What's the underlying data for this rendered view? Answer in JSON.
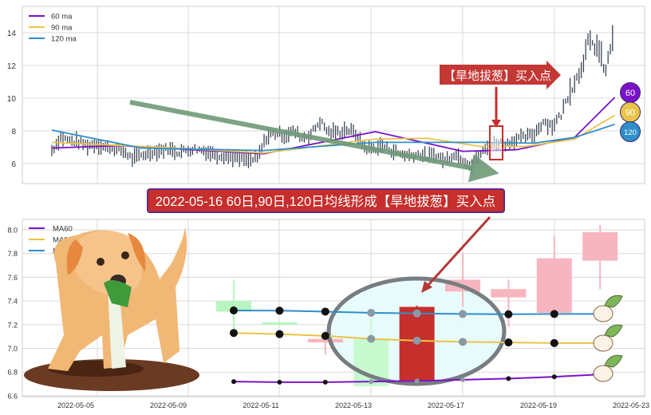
{
  "chart_data": [
    {
      "type": "line",
      "subtype": "candlestick",
      "ylim": [
        4.8,
        15.3
      ],
      "yticks": [
        "6",
        "8",
        "10",
        "12",
        "14"
      ],
      "yticks_values": [
        6,
        8,
        10,
        12,
        14
      ],
      "grid": true,
      "legend_position": "top-left",
      "closes": [
        6.8,
        7.6,
        7.4,
        7.3,
        7.1,
        7.2,
        7.0,
        6.9,
        6.8,
        6.3,
        6.5,
        6.7,
        6.8,
        6.9,
        6.7,
        6.8,
        6.9,
        6.8,
        6.6,
        6.5,
        6.4,
        6.3,
        6.2,
        6.3,
        7.6,
        7.9,
        7.7,
        8.0,
        7.6,
        7.8,
        8.6,
        7.9,
        7.9,
        8.1,
        7.8,
        7.0,
        6.9,
        7.1,
        6.8,
        6.6,
        6.5,
        6.6,
        6.4,
        6.5,
        6.2,
        6.6,
        6.3,
        5.9,
        6.6,
        7.1,
        7.3,
        7.2,
        7.5,
        7.6,
        7.8,
        8.6,
        8.3,
        9.0,
        10.5,
        11.5,
        13.3,
        13.2,
        11.6,
        14.5
      ],
      "series": [
        {
          "name": "60 ma",
          "color": "#7B12C8",
          "points": [
            [
              0,
              6.95
            ],
            [
              7.6,
              7.1
            ],
            [
              23.7,
              6.6
            ],
            [
              36.2,
              7.95
            ],
            [
              46,
              6.75
            ],
            [
              52,
              6.85
            ],
            [
              58.5,
              7.6
            ],
            [
              63,
              10.05
            ]
          ]
        },
        {
          "name": "90 ma",
          "color": "#E8C44A",
          "points": [
            [
              0,
              7.3
            ],
            [
              12,
              7.0
            ],
            [
              23.7,
              6.65
            ],
            [
              36.2,
              7.5
            ],
            [
              42,
              7.55
            ],
            [
              48,
              7.05
            ],
            [
              53,
              7.05
            ],
            [
              58.5,
              7.5
            ],
            [
              63,
              8.95
            ]
          ]
        },
        {
          "name": "120 ma",
          "color": "#2E8FC9",
          "points": [
            [
              0,
              8.05
            ],
            [
              10,
              6.95
            ],
            [
              23.7,
              6.8
            ],
            [
              36.2,
              7.3
            ],
            [
              48,
              7.3
            ],
            [
              54,
              7.25
            ],
            [
              58.5,
              7.6
            ],
            [
              63,
              8.4
            ]
          ]
        }
      ],
      "badges": [
        "60",
        "90",
        "120"
      ],
      "annotation": "【旱地拔葱】买入点"
    },
    {
      "type": "line",
      "subtype": "candlestick",
      "title": "2022-05-16 60日,90日,120日均线形成【旱地拔葱】买入点",
      "ylim": [
        6.6,
        8.1
      ],
      "yticks": [
        "6.6",
        "6.8",
        "7.0",
        "7.2",
        "7.4",
        "7.6",
        "7.8",
        "8.0"
      ],
      "yticks_values": [
        6.6,
        6.8,
        7.0,
        7.2,
        7.4,
        7.6,
        7.8,
        8.0
      ],
      "xticks": [
        "2022-05-05",
        "2022-05-09",
        "2022-05-11",
        "2022-05-13",
        "2022-05-17",
        "2022-05-19",
        "2022-05-23"
      ],
      "grid": true,
      "legend_position": "top-left",
      "candles": [
        {
          "open": 7.31,
          "close": 7.4,
          "high": 7.58,
          "low": 7.1,
          "color": "#b8f5c0"
        },
        {
          "open": 7.2,
          "close": 7.22,
          "high": 7.23,
          "low": 7.19,
          "color": "#b8f5c0"
        },
        {
          "open": 7.08,
          "close": 7.05,
          "high": 7.15,
          "low": 6.95,
          "color": "#f7b5c0"
        },
        {
          "open": 7.08,
          "close": 6.68,
          "high": 7.25,
          "low": 6.68,
          "color": "#c8fad0"
        },
        {
          "open": 6.72,
          "close": 7.35,
          "high": 7.36,
          "low": 6.72,
          "color": "#c62f2c"
        },
        {
          "open": 7.48,
          "close": 7.58,
          "high": 7.8,
          "low": 7.35,
          "color": "#f7b5c0"
        },
        {
          "open": 7.43,
          "close": 7.5,
          "high": 7.58,
          "low": 7.18,
          "color": "#f7b5c0"
        },
        {
          "open": 7.3,
          "close": 7.76,
          "high": 7.95,
          "low": 7.3,
          "color": "#f7b5c0"
        },
        {
          "open": 7.74,
          "close": 7.98,
          "high": 8.04,
          "low": 7.5,
          "color": "#f7b5c0"
        }
      ],
      "series": [
        {
          "name": "MA60",
          "color": "#7B12C8",
          "values": [
            6.72,
            6.715,
            6.715,
            6.72,
            6.725,
            6.735,
            6.745,
            6.76,
            6.78
          ]
        },
        {
          "name": "MA90",
          "color": "#E8C44A",
          "values": [
            7.13,
            7.12,
            7.105,
            7.08,
            7.065,
            7.055,
            7.05,
            7.045,
            7.045
          ]
        },
        {
          "name": "MA120",
          "color": "#2E8FC9",
          "values": [
            7.32,
            7.318,
            7.31,
            7.3,
            7.295,
            7.29,
            7.288,
            7.29,
            7.29
          ]
        }
      ]
    }
  ]
}
